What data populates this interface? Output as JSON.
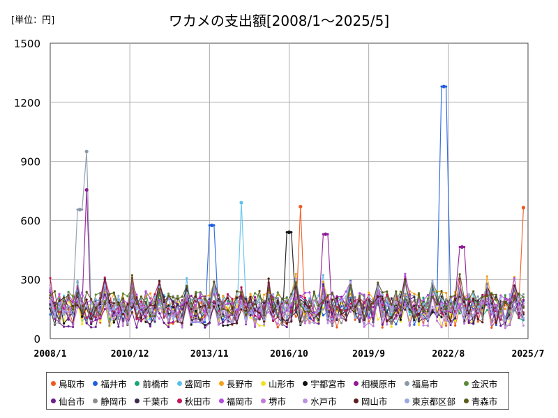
{
  "title": "ワカメの支出額[2008/1～2025/5]",
  "unit": "[単位：円]",
  "chart_data": {
    "type": "line",
    "ylim": [
      0,
      1500
    ],
    "yticks": [
      0,
      300,
      600,
      900,
      1200,
      1500
    ],
    "ytick_labels": [
      "0",
      "300",
      "600",
      "900",
      "1200",
      "1500"
    ],
    "xlim": [
      "2008/1",
      "2025/7"
    ],
    "xticks": [
      "2008/1",
      "2010/12",
      "2013/11",
      "2016/10",
      "2019/9",
      "2022/8",
      "2025/7"
    ],
    "grid": true,
    "legend_position": "bottom",
    "notable_points": [
      {
        "series": "福島市",
        "x": "2009/5",
        "y": 950
      },
      {
        "series": "相模原市",
        "x": "2009/5",
        "y": 755
      },
      {
        "series": "福島市",
        "x": "2009/2",
        "y": 655
      },
      {
        "series": "福井市",
        "x": "2013/12",
        "y": 575
      },
      {
        "series": "盛岡市",
        "x": "2015/1",
        "y": 690
      },
      {
        "series": "宇都宮市",
        "x": "2016/10",
        "y": 540
      },
      {
        "series": "鳥取市",
        "x": "2017/3",
        "y": 670
      },
      {
        "series": "相模原市",
        "x": "2018/2",
        "y": 530
      },
      {
        "series": "福井市",
        "x": "2022/6",
        "y": 1280
      },
      {
        "series": "相模原市",
        "x": "2023/2",
        "y": 465
      },
      {
        "series": "鳥取市",
        "x": "2025/5",
        "y": 665
      }
    ],
    "series": [
      {
        "name": "鳥取市",
        "color": "#f0581f"
      },
      {
        "name": "福井市",
        "color": "#1f5fe0"
      },
      {
        "name": "前橋市",
        "color": "#1aa67a"
      },
      {
        "name": "盛岡市",
        "color": "#5cc0ef"
      },
      {
        "name": "長野市",
        "color": "#f4a21c"
      },
      {
        "name": "山形市",
        "color": "#f3e124"
      },
      {
        "name": "宇都宮市",
        "color": "#111111"
      },
      {
        "name": "相模原市",
        "color": "#8f1a96"
      },
      {
        "name": "福島市",
        "color": "#8a99a8"
      },
      {
        "name": "金沢市",
        "color": "#5c8a3c"
      },
      {
        "name": "仙台市",
        "color": "#6a1f8c"
      },
      {
        "name": "静岡市",
        "color": "#8c8c8c"
      },
      {
        "name": "千葉市",
        "color": "#3a2a4a"
      },
      {
        "name": "秋田市",
        "color": "#c0185a"
      },
      {
        "name": "福岡市",
        "color": "#b04ce0"
      },
      {
        "name": "堺市",
        "color": "#c27ad8"
      },
      {
        "name": "水戸市",
        "color": "#b894e0"
      },
      {
        "name": "岡山市",
        "color": "#5a1e1e"
      },
      {
        "name": "東京都区部",
        "color": "#9aa8e0"
      },
      {
        "name": "青森市",
        "color": "#5a5a1a"
      }
    ]
  }
}
